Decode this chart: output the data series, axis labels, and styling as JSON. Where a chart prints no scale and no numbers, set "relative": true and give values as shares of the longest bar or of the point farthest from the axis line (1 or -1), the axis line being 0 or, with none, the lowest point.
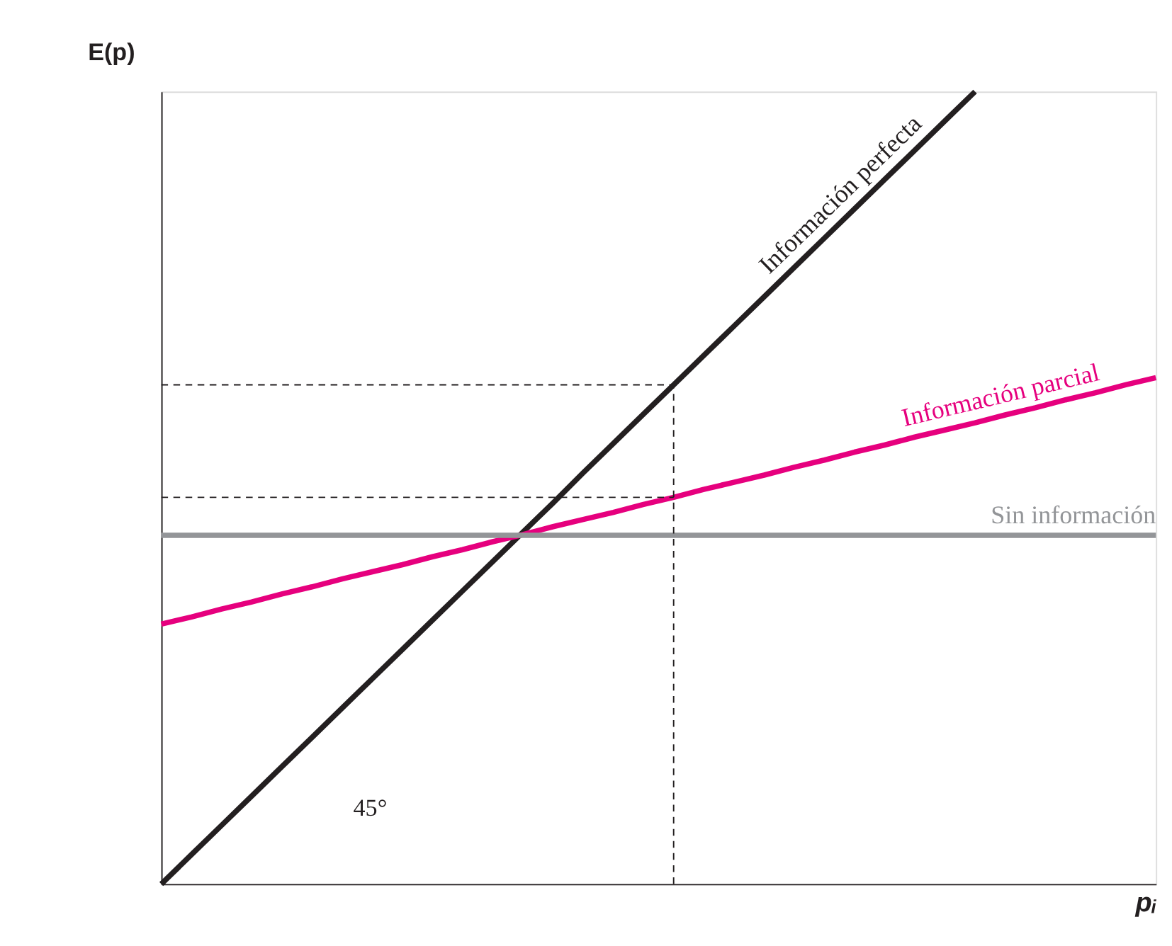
{
  "chart_data": {
    "type": "line",
    "relative": true,
    "xlabel": "pᵢ",
    "ylabel": "E(p)",
    "grid": false,
    "legend": false,
    "marker": "none",
    "annotations": [
      "45°"
    ],
    "categories": [
      null,
      null,
      null,
      null,
      null,
      null,
      null,
      null,
      null,
      null,
      null,
      null,
      null,
      null,
      null,
      null,
      null,
      null,
      null,
      null,
      null,
      null,
      null,
      null,
      null,
      null,
      null,
      null,
      null,
      null,
      null,
      null,
      null,
      null
    ],
    "series": [
      {
        "name": "Información perfecta",
        "color": "#231f20",
        "line_style": "solid",
        "values": [
          0,
          0.037,
          0.074,
          0.111,
          0.148,
          0.185,
          0.222,
          0.259,
          0.296,
          0.333,
          0.37,
          0.407,
          0.444,
          0.481,
          0.519,
          0.556,
          0.593,
          0.63,
          0.667,
          0.704,
          0.741,
          0.778,
          0.815,
          0.852,
          0.889,
          0.926,
          0.963,
          1,
          null,
          null,
          null,
          null,
          null,
          null
        ]
      },
      {
        "name": "Información parcial",
        "color": "#e6007e",
        "line_style": "solid",
        "values": [
          0.328,
          0.337,
          0.347,
          0.356,
          0.366,
          0.375,
          0.385,
          0.394,
          0.403,
          0.413,
          0.422,
          0.432,
          0.441,
          0.451,
          0.46,
          0.469,
          0.479,
          0.488,
          0.498,
          0.507,
          0.516,
          0.526,
          0.535,
          0.545,
          0.554,
          0.564,
          0.573,
          0.582,
          0.592,
          0.601,
          0.611,
          0.62,
          0.63,
          0.639
        ]
      },
      {
        "name": "Sin información",
        "color": "#939598",
        "line_style": "solid",
        "values": [
          0.44,
          0.44,
          0.44,
          0.44,
          0.44,
          0.44,
          0.44,
          0.44,
          0.44,
          0.44,
          0.44,
          0.44,
          0.44,
          0.44,
          0.44,
          0.44,
          0.44,
          0.44,
          0.44,
          0.44,
          0.44,
          0.44,
          0.44,
          0.44,
          0.44,
          0.44,
          0.44,
          0.44,
          0.44,
          0.44,
          0.44,
          0.44,
          0.44,
          0.44
        ]
      },
      {
        "color": "#231f20",
        "line_style": "dashed",
        "values": [
          0.63,
          0.63,
          0.63,
          0.63,
          0.63,
          0.63,
          0.63,
          0.63,
          0.63,
          0.63,
          0.63,
          0.63,
          0.63,
          0.63,
          0.63,
          0.63,
          0.63,
          0.63,
          null,
          null,
          null,
          null,
          null,
          null,
          null,
          null,
          null,
          null,
          null,
          null,
          null,
          null,
          null,
          null
        ]
      },
      {
        "color": "#231f20",
        "line_style": "dashed",
        "values": [
          0.488,
          0.488,
          0.488,
          0.488,
          0.488,
          0.488,
          0.488,
          0.488,
          0.488,
          0.488,
          0.488,
          0.488,
          0.488,
          0.488,
          0.488,
          0.488,
          0.488,
          0.488,
          null,
          null,
          null,
          null,
          null,
          null,
          null,
          null,
          null,
          null,
          null,
          null,
          null,
          null,
          null,
          null
        ]
      }
    ]
  }
}
